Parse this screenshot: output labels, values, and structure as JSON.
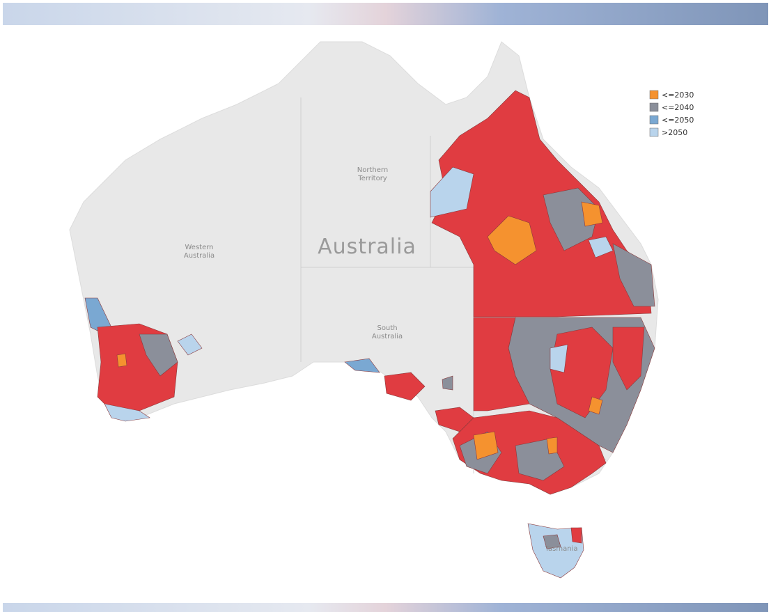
{
  "map": {
    "country_label": "Australia",
    "state_labels": [
      "Northern Territory",
      "Western Australia",
      "South Australia",
      "Tasmania"
    ],
    "legend": [
      {
        "name": "<=2030",
        "color": "#f5922f"
      },
      {
        "name": "<=2040",
        "color": "#8b8f9a"
      },
      {
        "name": "<=2050",
        "color": "#7aa8d2"
      },
      {
        "name": ">2050",
        "color": "#b9d4ec"
      }
    ]
  }
}
